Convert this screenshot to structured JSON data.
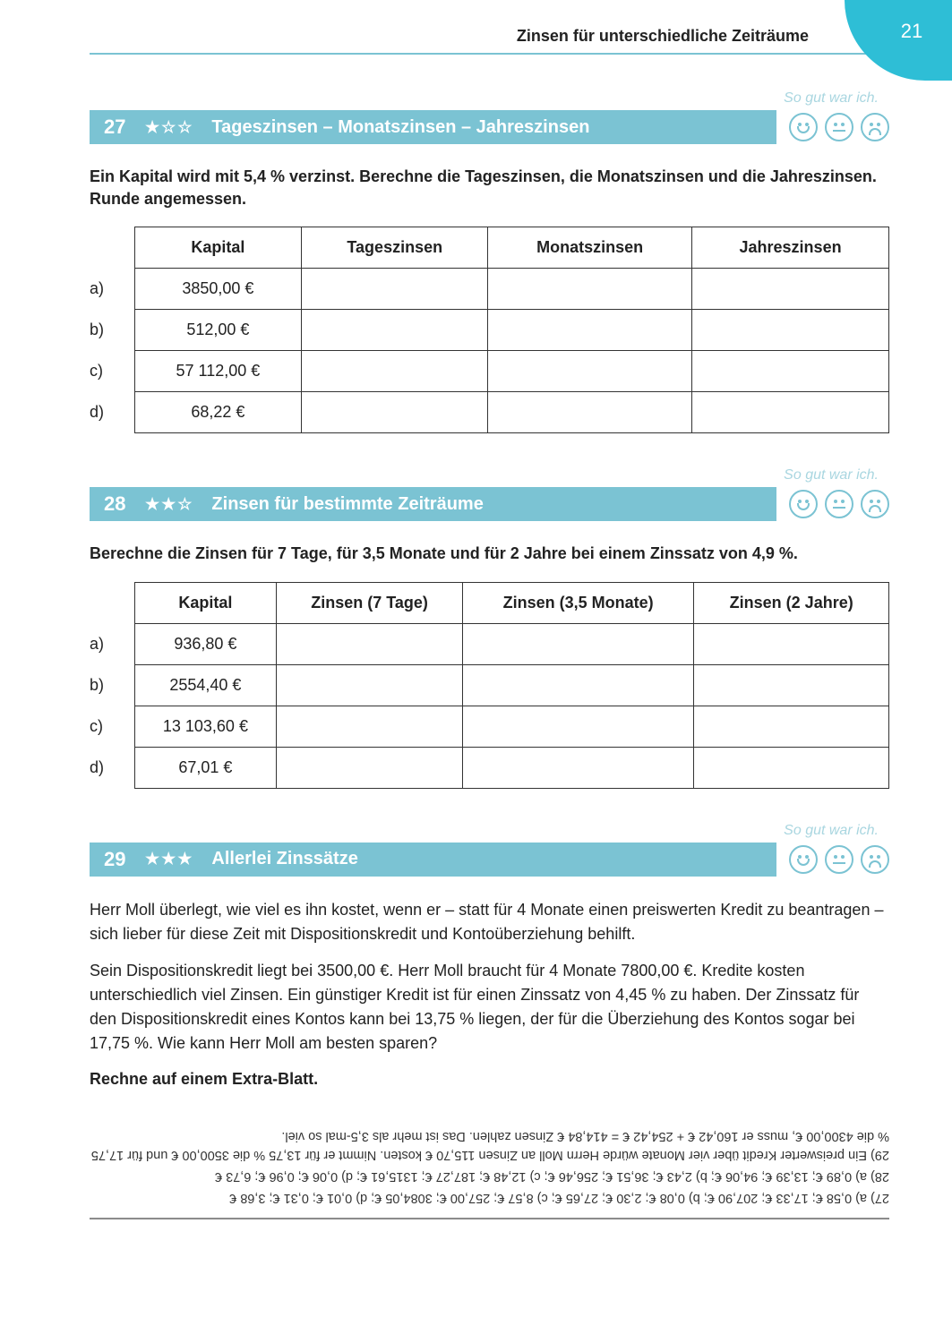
{
  "page": {
    "section_title": "Zinsen für unterschiedliche Zeiträume",
    "number": "21"
  },
  "rating_label": "So gut war ich.",
  "ex27": {
    "number": "27",
    "stars": "★☆☆",
    "title": "Tageszinsen – Monatszinsen – Jahreszinsen",
    "instruction": "Ein Kapital wird mit 5,4 % verzinst. Berechne die Tageszinsen, die Monatszinsen und die Jahreszinsen. Runde angemessen.",
    "headers": [
      "Kapital",
      "Tageszinsen",
      "Monatszinsen",
      "Jahreszinsen"
    ],
    "rows": [
      {
        "label": "a)",
        "kapital": "3850,00 €"
      },
      {
        "label": "b)",
        "kapital": "512,00 €"
      },
      {
        "label": "c)",
        "kapital": "57 112,00 €"
      },
      {
        "label": "d)",
        "kapital": "68,22 €"
      }
    ]
  },
  "ex28": {
    "number": "28",
    "stars": "★★☆",
    "title": "Zinsen für bestimmte Zeiträume",
    "instruction": "Berechne die Zinsen für 7 Tage, für 3,5 Monate und für 2 Jahre bei einem Zinssatz von 4,9 %.",
    "headers": [
      "Kapital",
      "Zinsen (7 Tage)",
      "Zinsen (3,5 Monate)",
      "Zinsen (2 Jahre)"
    ],
    "rows": [
      {
        "label": "a)",
        "kapital": "936,80 €"
      },
      {
        "label": "b)",
        "kapital": "2554,40 €"
      },
      {
        "label": "c)",
        "kapital": "13 103,60 €"
      },
      {
        "label": "d)",
        "kapital": "67,01 €"
      }
    ]
  },
  "ex29": {
    "number": "29",
    "stars": "★★★",
    "title": "Allerlei Zinssätze",
    "p1": "Herr Moll überlegt, wie viel es ihn kostet, wenn er – statt für 4 Monate einen preiswerten Kredit zu beantragen – sich lieber für diese Zeit mit Dispositionskredit und Kontoüberziehung behilft.",
    "p2": "Sein Dispositionskredit liegt bei 3500,00 €. Herr Moll braucht für 4 Monate 7800,00 €. Kredite kosten unterschiedlich viel Zinsen. Ein günstiger Kredit ist für einen Zinssatz von 4,45 % zu haben. Der Zinssatz für den Dispositionskredit eines Kontos kann bei 13,75 % liegen, der für die Überziehung des Kontos sogar bei 17,75 %. Wie kann Herr Moll am besten sparen?",
    "p3": "Rechne auf einem Extra-Blatt."
  },
  "answers": {
    "l1": "27) a) 0,58 €; 17,33 €; 207,90 €; b) 0,08 €; 2,30 €; 27,65 €; c) 8,57 €; 257,00 €; 3084,05 €; d) 0,01 €; 0,31 €; 3,68 €",
    "l2": "28) a) 0,89 €; 13,39 €; 94,06 €; b) 2,43 €; 36,51 €; 256,46 €; c) 12,48 €; 187,27 €; 1315,61 €; d) 0,06 €; 0,96 €; 6,73 €",
    "l3": "29) Ein preiswerter Kredit über vier Monate würde Herrn Moll an Zinsen 115,70 € kosten. Nimmt er für 13,75 % die 3500,00 € und für 17,75 % die 4300,00 €, muss er 160,42 € + 254,42 € = 414,84 € Zinsen zahlen. Das ist mehr als 3,5-mal so viel."
  }
}
